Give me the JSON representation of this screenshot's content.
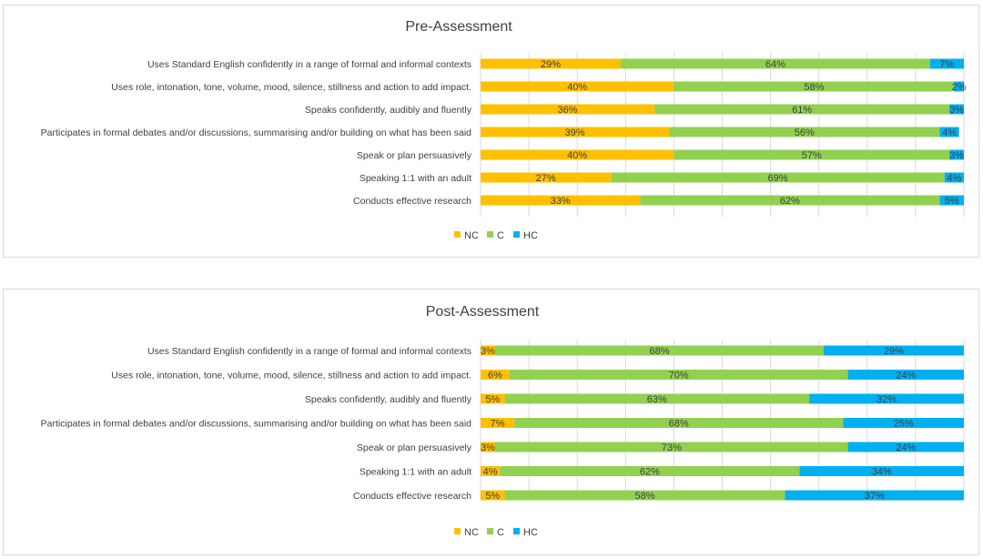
{
  "colors": {
    "NC": "#ffc000",
    "C": "#92d050",
    "HC": "#00b0f0"
  },
  "chart_data": [
    {
      "type": "bar",
      "orientation": "horizontal",
      "stacked": "percent",
      "title": "Pre-Assessment",
      "categories": [
        "Uses Standard English confidently in a range of formal and informal contexts",
        "Uses role, intonation, tone, volume, mood, silence, stillness and action to add impact.",
        "Speaks confidently, audibly and fluently",
        "Participates in formal debates and/or discussions, summarising and/or building on what has been said",
        "Speak or plan persuasively",
        "Speaking 1:1 with an adult",
        "Conducts effective research"
      ],
      "series": [
        {
          "name": "NC",
          "values": [
            29,
            40,
            36,
            39,
            40,
            27,
            33
          ]
        },
        {
          "name": "C",
          "values": [
            64,
            58,
            61,
            56,
            57,
            69,
            62
          ]
        },
        {
          "name": "HC",
          "values": [
            7,
            2,
            3,
            4,
            3,
            4,
            5
          ]
        }
      ],
      "value_suffix": "%",
      "xlim": [
        0,
        100
      ],
      "grid": true,
      "legend": "bottom"
    },
    {
      "type": "bar",
      "orientation": "horizontal",
      "stacked": "percent",
      "title": "Post-Assessment",
      "categories": [
        "Uses Standard English confidently in a range of formal and informal contexts",
        "Uses role, intonation, tone, volume, mood, silence, stillness and action to add impact.",
        "Speaks confidently, audibly and fluently",
        "Participates in formal debates and/or discussions, summarising and/or building on what has been said",
        "Speak or plan persuasively",
        "Speaking 1:1 with an adult",
        "Conducts effective research"
      ],
      "series": [
        {
          "name": "NC",
          "values": [
            3,
            6,
            5,
            7,
            3,
            4,
            5
          ]
        },
        {
          "name": "C",
          "values": [
            68,
            70,
            63,
            68,
            73,
            62,
            58
          ]
        },
        {
          "name": "HC",
          "values": [
            29,
            24,
            32,
            25,
            24,
            34,
            37
          ]
        }
      ],
      "value_suffix": "%",
      "xlim": [
        0,
        100
      ],
      "grid": true,
      "legend": "bottom"
    }
  ]
}
